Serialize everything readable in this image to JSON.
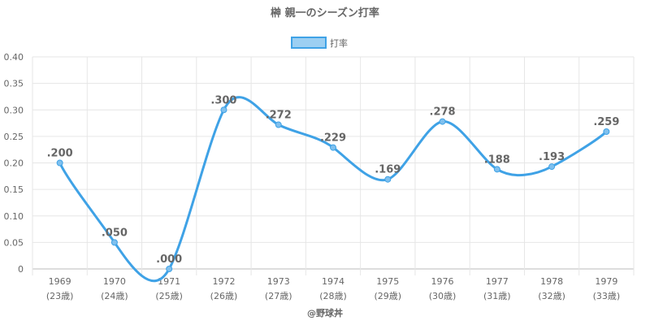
{
  "chart_data": {
    "type": "line",
    "title": "榊 親一のシーズン打率",
    "categories": [
      "1969",
      "1970",
      "1971",
      "1972",
      "1973",
      "1974",
      "1975",
      "1976",
      "1977",
      "1978",
      "1979"
    ],
    "category_sublabels": [
      "(23歳)",
      "(24歳)",
      "(25歳)",
      "(26歳)",
      "(27歳)",
      "(28歳)",
      "(29歳)",
      "(30歳)",
      "(31歳)",
      "(32歳)",
      "(33歳)"
    ],
    "series": [
      {
        "name": "打率",
        "values": [
          0.2,
          0.05,
          0.0,
          0.3,
          0.272,
          0.229,
          0.169,
          0.278,
          0.188,
          0.193,
          0.259
        ],
        "labels": [
          ".200",
          ".050",
          ".000",
          ".300",
          ".272",
          ".229",
          ".169",
          ".278",
          ".188",
          ".193",
          ".259"
        ],
        "color": "#3fa2e6"
      }
    ],
    "ylim": [
      0,
      0.4
    ],
    "yticks": [
      0,
      0.05,
      0.1,
      0.15,
      0.2,
      0.25,
      0.3,
      0.35,
      0.4
    ],
    "ytick_labels": [
      "0",
      "0.05",
      "0.10",
      "0.15",
      "0.20",
      "0.25",
      "0.30",
      "0.35",
      "0.40"
    ],
    "legend": "top-center",
    "grid": true,
    "credit": "@野球丼"
  }
}
